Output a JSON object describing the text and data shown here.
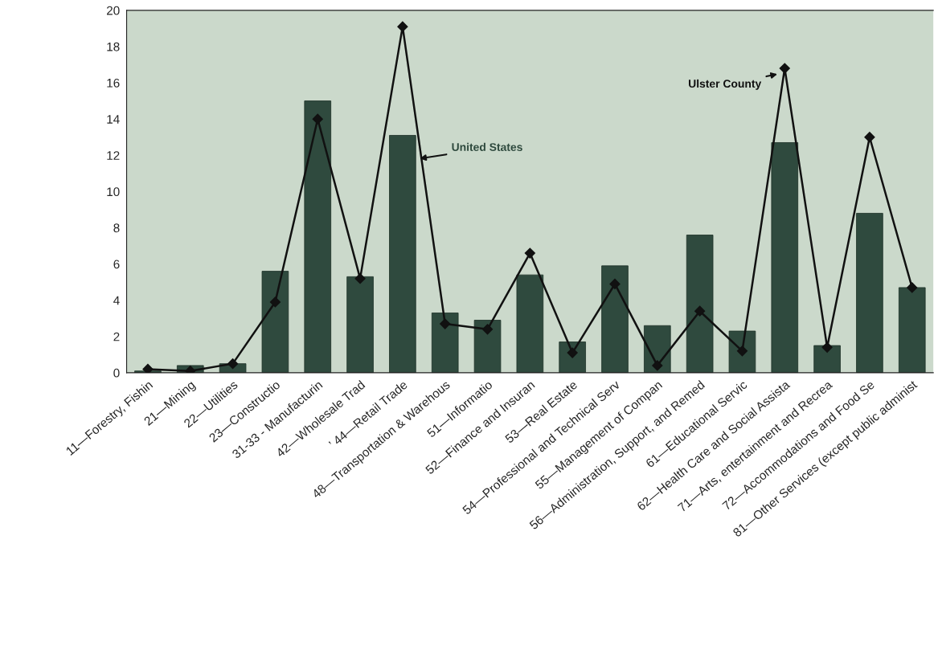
{
  "chart_data": {
    "type": "bar",
    "categories": [
      "11—Forestry, Fishin",
      "21—Mining",
      "22—Utilities",
      "23—Constructio",
      "31-33 - Manufacturin",
      "42—Wholesale Trad",
      "’ 44—Retail Trade",
      "48—Transportation & Warehous",
      "51—Informatio",
      "52—Finance and Insuran",
      "53—Real Estate",
      "54—Professional and Technical Serv",
      "55—Management of Compan",
      "56—Administration, Support, and Remed",
      "61—Educational Servic",
      "62—Health Care and Social Assista",
      "71—Arts, entertainment and Recrea",
      "72—Accommodations and Food Se",
      "81—Other Services (except public administ"
    ],
    "series": [
      {
        "name": "United States",
        "color": "#2f4a3e",
        "values": [
          0.1,
          0.4,
          0.5,
          5.6,
          15.0,
          5.3,
          13.1,
          3.3,
          2.9,
          5.4,
          1.7,
          5.9,
          2.6,
          7.6,
          2.3,
          12.7,
          1.5,
          8.8,
          4.7
        ]
      },
      {
        "name": "Ulster County",
        "type": "line",
        "color": "#111111",
        "marker": "diamond",
        "values": [
          0.2,
          0.1,
          0.5,
          3.9,
          14.0,
          5.2,
          19.1,
          2.7,
          2.4,
          6.6,
          1.1,
          4.9,
          0.4,
          3.4,
          1.2,
          16.8,
          1.4,
          13.0,
          4.7
        ]
      }
    ],
    "ylim": [
      0,
      20
    ],
    "yticks": [
      0,
      2,
      4,
      6,
      8,
      10,
      12,
      14,
      16,
      18,
      20
    ],
    "grid": false
  }
}
